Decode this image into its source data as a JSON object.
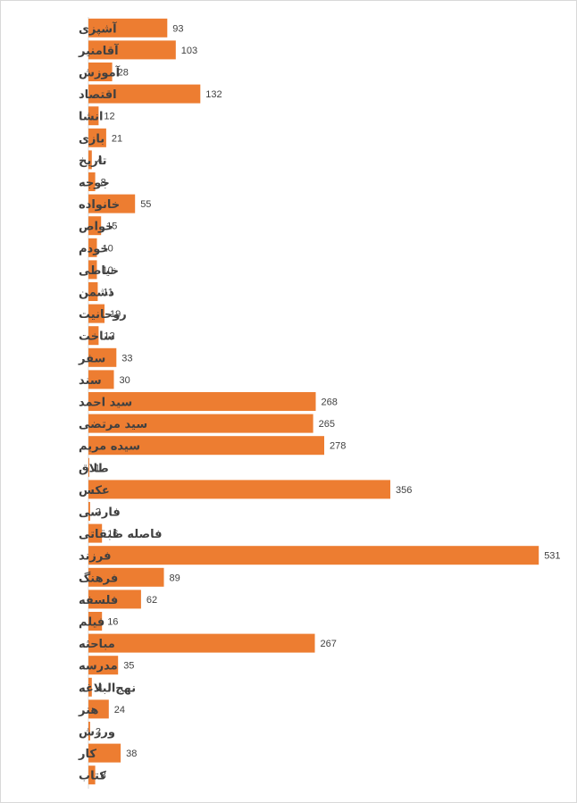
{
  "chart_data": {
    "type": "bar",
    "orientation": "horizontal",
    "bar_color": "#ED7D31",
    "xlim": [
      0,
      535
    ],
    "grid": false,
    "legend": "none",
    "categories": [
      "آشپزی",
      "آقامنیر",
      "آموزش",
      "اقتصاد",
      "انشا",
      "بازی",
      "تاریخ",
      "جوجه",
      "خانواده",
      "خواص",
      "خودم",
      "خیاطی",
      "دشمن",
      "روحانیت",
      "ساخت",
      "سفر",
      "سند",
      "سید احمد",
      "سید مرتضی",
      "سیده مریم",
      "طلاق",
      "عکس",
      "فارسی",
      "فاصله طبقاتی",
      "فرزند",
      "فرهنگ",
      "فلسفه",
      "فیلم",
      "مباحثه",
      "مدرسه",
      "نهج‌البلاغه",
      "هنر",
      "ورزش",
      "کار",
      "کتاب"
    ],
    "values": [
      93,
      103,
      28,
      132,
      12,
      21,
      4,
      8,
      55,
      15,
      10,
      10,
      11,
      19,
      12,
      33,
      30,
      268,
      265,
      278,
      1,
      356,
      2,
      16,
      531,
      89,
      62,
      16,
      267,
      35,
      4,
      24,
      2,
      38,
      8
    ]
  }
}
